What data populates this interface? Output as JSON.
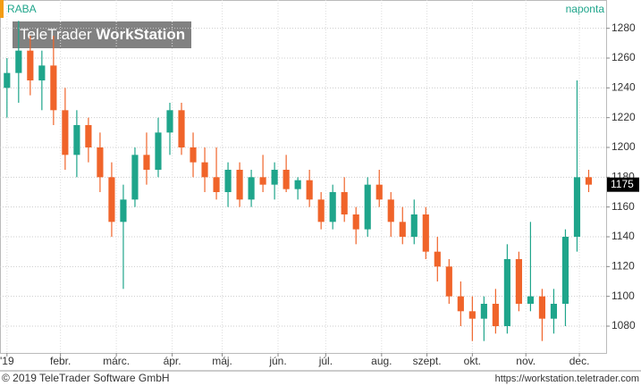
{
  "chart_data": {
    "type": "candlestick",
    "title": "RABA",
    "interval": "naponta",
    "watermark": [
      "TeleTrader",
      "WorkStation"
    ],
    "footer_left": "© 2019 TeleTrader Software GmbH",
    "footer_right": "https://workstation.teletrader.com",
    "up_color": "#1fa58b",
    "down_color": "#f0642a",
    "grid": true,
    "ylim": [
      1062,
      1299
    ],
    "yticks": [
      1080,
      1100,
      1120,
      1140,
      1160,
      1180,
      1200,
      1220,
      1240,
      1260,
      1280
    ],
    "xlim": [
      -0.6,
      51.5
    ],
    "xticks": [
      {
        "value": 0,
        "label": "'19"
      },
      {
        "value": 4.6,
        "label": "febr."
      },
      {
        "value": 9.4,
        "label": "márc."
      },
      {
        "value": 14.2,
        "label": "ápr."
      },
      {
        "value": 18.5,
        "label": "máj."
      },
      {
        "value": 23.3,
        "label": "jún."
      },
      {
        "value": 27.4,
        "label": "júl."
      },
      {
        "value": 32.2,
        "label": "aug."
      },
      {
        "value": 36.1,
        "label": "szept."
      },
      {
        "value": 40,
        "label": "okt."
      },
      {
        "value": 44.6,
        "label": "nov."
      },
      {
        "value": 49.2,
        "label": "dec."
      }
    ],
    "last_value": 1175,
    "candles": [
      {
        "open": 1240,
        "high": 1260,
        "low": 1220,
        "close": 1250
      },
      {
        "open": 1250,
        "high": 1285,
        "low": 1230,
        "close": 1265
      },
      {
        "open": 1265,
        "high": 1275,
        "low": 1235,
        "close": 1245
      },
      {
        "open": 1245,
        "high": 1265,
        "low": 1225,
        "close": 1255
      },
      {
        "open": 1255,
        "high": 1275,
        "low": 1215,
        "close": 1225
      },
      {
        "open": 1225,
        "high": 1240,
        "low": 1185,
        "close": 1195
      },
      {
        "open": 1195,
        "high": 1225,
        "low": 1180,
        "close": 1215
      },
      {
        "open": 1215,
        "high": 1220,
        "low": 1190,
        "close": 1200
      },
      {
        "open": 1200,
        "high": 1210,
        "low": 1170,
        "close": 1180
      },
      {
        "open": 1180,
        "high": 1190,
        "low": 1140,
        "close": 1150
      },
      {
        "open": 1150,
        "high": 1175,
        "low": 1105,
        "close": 1165
      },
      {
        "open": 1165,
        "high": 1200,
        "low": 1160,
        "close": 1195
      },
      {
        "open": 1195,
        "high": 1210,
        "low": 1175,
        "close": 1185
      },
      {
        "open": 1185,
        "high": 1220,
        "low": 1180,
        "close": 1210
      },
      {
        "open": 1210,
        "high": 1230,
        "low": 1195,
        "close": 1225
      },
      {
        "open": 1225,
        "high": 1230,
        "low": 1195,
        "close": 1200
      },
      {
        "open": 1200,
        "high": 1210,
        "low": 1180,
        "close": 1190
      },
      {
        "open": 1190,
        "high": 1200,
        "low": 1170,
        "close": 1180
      },
      {
        "open": 1180,
        "high": 1200,
        "low": 1165,
        "close": 1170
      },
      {
        "open": 1170,
        "high": 1190,
        "low": 1160,
        "close": 1185
      },
      {
        "open": 1185,
        "high": 1190,
        "low": 1160,
        "close": 1165
      },
      {
        "open": 1165,
        "high": 1185,
        "low": 1160,
        "close": 1180
      },
      {
        "open": 1180,
        "high": 1195,
        "low": 1170,
        "close": 1175
      },
      {
        "open": 1175,
        "high": 1190,
        "low": 1165,
        "close": 1185
      },
      {
        "open": 1185,
        "high": 1195,
        "low": 1170,
        "close": 1172
      },
      {
        "open": 1172,
        "high": 1180,
        "low": 1165,
        "close": 1178
      },
      {
        "open": 1178,
        "high": 1185,
        "low": 1160,
        "close": 1165
      },
      {
        "open": 1165,
        "high": 1170,
        "low": 1145,
        "close": 1150
      },
      {
        "open": 1150,
        "high": 1175,
        "low": 1145,
        "close": 1170
      },
      {
        "open": 1170,
        "high": 1180,
        "low": 1150,
        "close": 1155
      },
      {
        "open": 1155,
        "high": 1160,
        "low": 1135,
        "close": 1145
      },
      {
        "open": 1145,
        "high": 1180,
        "low": 1140,
        "close": 1175
      },
      {
        "open": 1175,
        "high": 1185,
        "low": 1160,
        "close": 1165
      },
      {
        "open": 1165,
        "high": 1170,
        "low": 1140,
        "close": 1150
      },
      {
        "open": 1150,
        "high": 1160,
        "low": 1135,
        "close": 1140
      },
      {
        "open": 1140,
        "high": 1165,
        "low": 1135,
        "close": 1155
      },
      {
        "open": 1155,
        "high": 1160,
        "low": 1125,
        "close": 1130
      },
      {
        "open": 1130,
        "high": 1140,
        "low": 1110,
        "close": 1120
      },
      {
        "open": 1120,
        "high": 1125,
        "low": 1095,
        "close": 1100
      },
      {
        "open": 1100,
        "high": 1110,
        "low": 1080,
        "close": 1090
      },
      {
        "open": 1090,
        "high": 1100,
        "low": 1070,
        "close": 1085
      },
      {
        "open": 1085,
        "high": 1100,
        "low": 1070,
        "close": 1095
      },
      {
        "open": 1095,
        "high": 1105,
        "low": 1075,
        "close": 1080
      },
      {
        "open": 1080,
        "high": 1135,
        "low": 1075,
        "close": 1125
      },
      {
        "open": 1125,
        "high": 1130,
        "low": 1090,
        "close": 1095
      },
      {
        "open": 1095,
        "high": 1150,
        "low": 1090,
        "close": 1100
      },
      {
        "open": 1100,
        "high": 1105,
        "low": 1070,
        "close": 1085
      },
      {
        "open": 1085,
        "high": 1105,
        "low": 1075,
        "close": 1095
      },
      {
        "open": 1095,
        "high": 1145,
        "low": 1080,
        "close": 1140
      },
      {
        "open": 1140,
        "high": 1245,
        "low": 1130,
        "close": 1180
      },
      {
        "open": 1180,
        "high": 1185,
        "low": 1170,
        "close": 1175
      }
    ]
  }
}
